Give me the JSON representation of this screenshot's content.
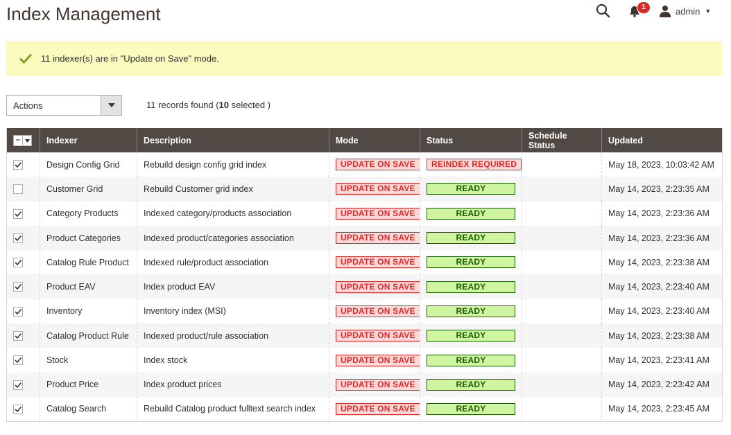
{
  "page": {
    "title": "Index Management"
  },
  "header": {
    "notifications_count": "1",
    "user_name": "admin"
  },
  "message": {
    "text": "11 indexer(s) are in \"Update on Save\" mode."
  },
  "toolbar": {
    "actions_label": "Actions",
    "records_prefix": "11 records found (",
    "selected_count": "10",
    "records_suffix": " selected )"
  },
  "grid": {
    "columns": [
      "Indexer",
      "Description",
      "Mode",
      "Status",
      "Schedule Status",
      "Updated"
    ],
    "rows": [
      {
        "checked": true,
        "indexer": "Design Config Grid",
        "description": "Rebuild design config grid index",
        "mode": "UPDATE ON SAVE",
        "status": "REINDEX REQUIRED",
        "status_type": "red",
        "schedule_status": "",
        "updated": "May 18, 2023, 10:03:42 AM"
      },
      {
        "checked": false,
        "indexer": "Customer Grid",
        "description": "Rebuild Customer grid index",
        "mode": "UPDATE ON SAVE",
        "status": "READY",
        "status_type": "green",
        "schedule_status": "",
        "updated": "May 14, 2023, 2:23:35 AM"
      },
      {
        "checked": true,
        "indexer": "Category Products",
        "description": "Indexed category/products association",
        "mode": "UPDATE ON SAVE",
        "status": "READY",
        "status_type": "green",
        "schedule_status": "",
        "updated": "May 14, 2023, 2:23:36 AM"
      },
      {
        "checked": true,
        "indexer": "Product Categories",
        "description": "Indexed product/categories association",
        "mode": "UPDATE ON SAVE",
        "status": "READY",
        "status_type": "green",
        "schedule_status": "",
        "updated": "May 14, 2023, 2:23:36 AM"
      },
      {
        "checked": true,
        "indexer": "Catalog Rule Product",
        "description": "Indexed rule/product association",
        "mode": "UPDATE ON SAVE",
        "status": "READY",
        "status_type": "green",
        "schedule_status": "",
        "updated": "May 14, 2023, 2:23:38 AM"
      },
      {
        "checked": true,
        "indexer": "Product EAV",
        "description": "Index product EAV",
        "mode": "UPDATE ON SAVE",
        "status": "READY",
        "status_type": "green",
        "schedule_status": "",
        "updated": "May 14, 2023, 2:23:40 AM"
      },
      {
        "checked": true,
        "indexer": "Inventory",
        "description": "Inventory index (MSI)",
        "mode": "UPDATE ON SAVE",
        "status": "READY",
        "status_type": "green",
        "schedule_status": "",
        "updated": "May 14, 2023, 2:23:40 AM"
      },
      {
        "checked": true,
        "indexer": "Catalog Product Rule",
        "description": "Indexed product/rule association",
        "mode": "UPDATE ON SAVE",
        "status": "READY",
        "status_type": "green",
        "schedule_status": "",
        "updated": "May 14, 2023, 2:23:38 AM"
      },
      {
        "checked": true,
        "indexer": "Stock",
        "description": "Index stock",
        "mode": "UPDATE ON SAVE",
        "status": "READY",
        "status_type": "green",
        "schedule_status": "",
        "updated": "May 14, 2023, 2:23:41 AM"
      },
      {
        "checked": true,
        "indexer": "Product Price",
        "description": "Index product prices",
        "mode": "UPDATE ON SAVE",
        "status": "READY",
        "status_type": "green",
        "schedule_status": "",
        "updated": "May 14, 2023, 2:23:42 AM"
      },
      {
        "checked": true,
        "indexer": "Catalog Search",
        "description": "Rebuild Catalog product fulltext search index",
        "mode": "UPDATE ON SAVE",
        "status": "READY",
        "status_type": "green",
        "schedule_status": "",
        "updated": "May 14, 2023, 2:23:45 AM"
      }
    ]
  },
  "colors": {
    "header_bg": "#514943",
    "message_bg": "#fafbbc",
    "success_check": "#79a22e",
    "mode_red": "#e22626",
    "ready_green": "#185b00"
  },
  "icons": {
    "search": "search-icon",
    "notifications": "bell-icon",
    "user": "user-icon",
    "message": "check-icon"
  }
}
